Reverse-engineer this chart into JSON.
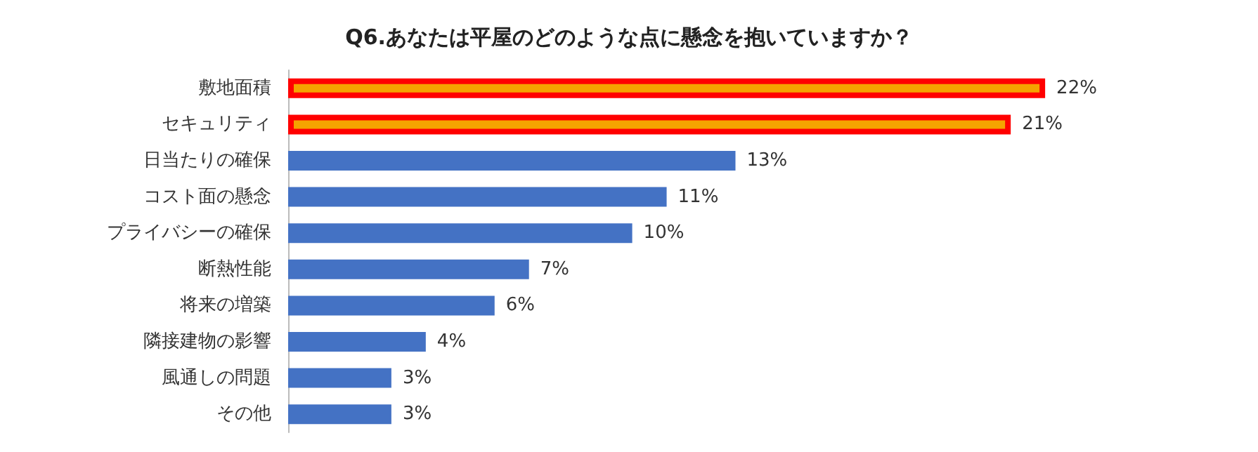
{
  "chart_data": {
    "type": "bar",
    "orientation": "horizontal",
    "title": "Q6.あなたは平屋のどのような点に懸念を抱いていますか？",
    "categories": [
      "敷地面積",
      "セキュリティ",
      "日当たりの確保",
      "コスト面の懸念",
      "プライバシーの確保",
      "断熱性能",
      "将来の増築",
      "隣接建物の影響",
      "風通しの問題",
      "その他"
    ],
    "values": [
      22,
      21,
      13,
      11,
      10,
      7,
      6,
      4,
      3,
      3
    ],
    "value_labels": [
      "22%",
      "21%",
      "13%",
      "11%",
      "10%",
      "7%",
      "6%",
      "4%",
      "3%",
      "3%"
    ],
    "colors": [
      "#f5a300",
      "#f5a300",
      "#4472c4",
      "#4472c4",
      "#4472c4",
      "#4472c4",
      "#4472c4",
      "#4472c4",
      "#4472c4",
      "#4472c4"
    ]
  }
}
